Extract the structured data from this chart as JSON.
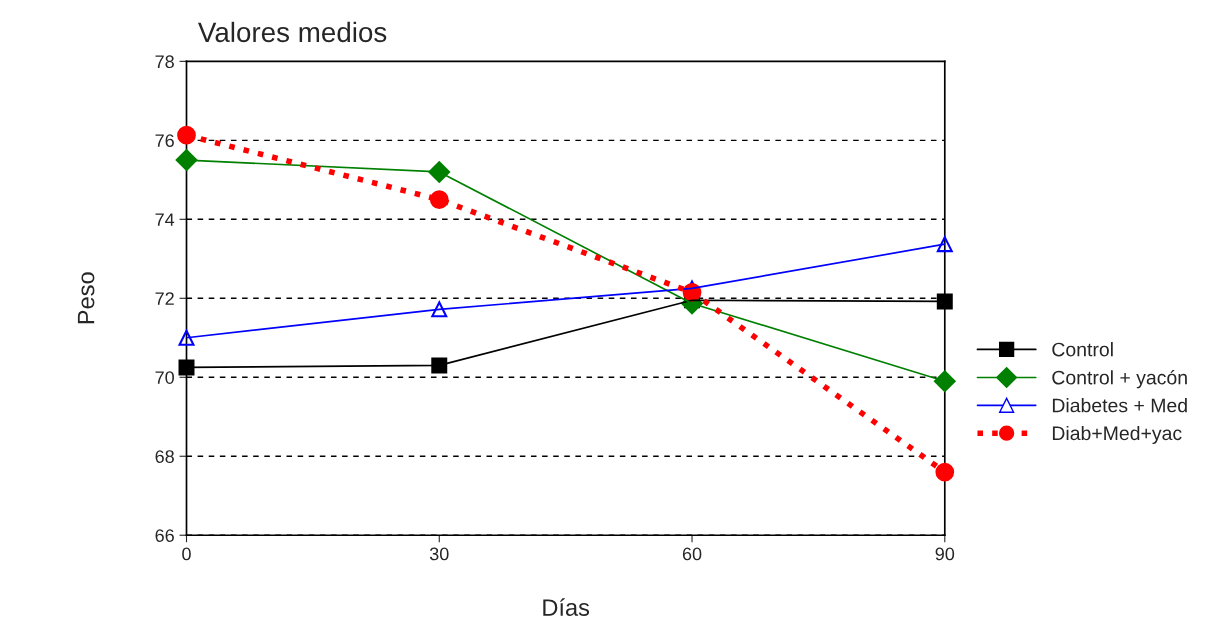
{
  "chart_data": {
    "type": "line",
    "title": "Valores medios",
    "xlabel": "Días",
    "ylabel": "Peso",
    "x": [
      0,
      30,
      60,
      90
    ],
    "series": [
      {
        "name": "Control",
        "color": "#000000",
        "marker": "square",
        "line_style": "solid",
        "values": [
          70.25,
          70.3,
          71.95,
          71.92
        ]
      },
      {
        "name": "Control + yacón",
        "color": "#008000",
        "marker": "diamond",
        "line_style": "solid",
        "values": [
          75.5,
          75.2,
          71.87,
          69.9
        ]
      },
      {
        "name": "Diabetes + Med",
        "color": "#0000ff",
        "marker": "triangle",
        "line_style": "solid",
        "values": [
          71.0,
          71.72,
          72.25,
          73.37
        ]
      },
      {
        "name": "Diab+Med+yac",
        "color": "#ff0000",
        "marker": "circle",
        "line_style": "dotted",
        "values": [
          76.13,
          74.5,
          72.15,
          67.6
        ]
      }
    ],
    "xlim": [
      0,
      90
    ],
    "xticks": [
      0,
      30,
      60,
      90
    ],
    "ylim": [
      66,
      78
    ],
    "yticks": [
      66,
      68,
      70,
      72,
      74,
      76,
      78
    ],
    "grid": "y",
    "legend": "right"
  }
}
